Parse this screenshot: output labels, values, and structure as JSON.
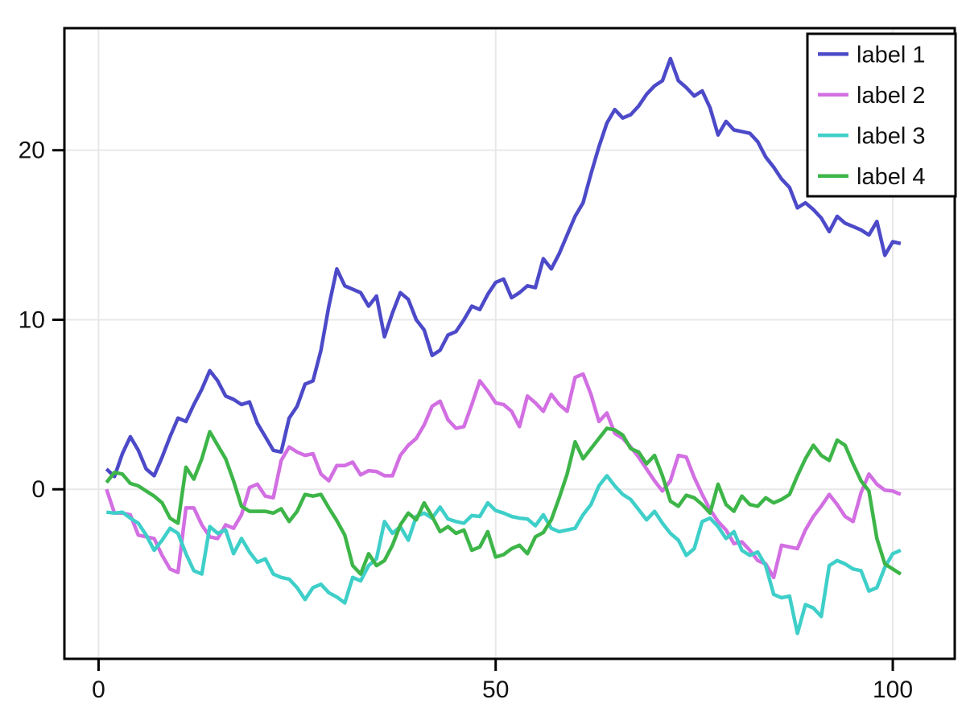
{
  "chart_data": {
    "type": "line",
    "title": "",
    "xlabel": "",
    "ylabel": "",
    "grid": true,
    "legend_position": "top-right",
    "xlim": [
      -4.3,
      107.8
    ],
    "ylim": [
      -10.0,
      27.2
    ],
    "x_ticks": [
      0,
      50,
      100
    ],
    "x_tick_labels": [
      "0",
      "50",
      "100"
    ],
    "y_ticks": [
      0,
      10,
      20
    ],
    "y_tick_labels": [
      "0",
      "10",
      "20"
    ],
    "x_start": 1,
    "x_step": 1,
    "series": [
      {
        "name": "label 1",
        "color": "#4c4ac8",
        "values": [
          1.2,
          0.75,
          2.1,
          3.1,
          2.3,
          1.2,
          0.8,
          1.9,
          3.1,
          4.2,
          4.0,
          5.0,
          5.9,
          7.0,
          6.4,
          5.5,
          5.3,
          5.0,
          5.15,
          3.9,
          3.1,
          2.3,
          2.2,
          4.2,
          4.9,
          6.2,
          6.4,
          8.2,
          10.8,
          13.0,
          12.0,
          11.8,
          11.6,
          10.8,
          11.4,
          9.0,
          10.4,
          11.6,
          11.2,
          10.0,
          9.4,
          7.9,
          8.2,
          9.1,
          9.3,
          10.0,
          10.8,
          10.6,
          11.5,
          12.2,
          12.4,
          11.3,
          11.6,
          12.0,
          11.9,
          13.6,
          13.0,
          13.9,
          15.0,
          16.1,
          16.9,
          18.6,
          20.2,
          21.6,
          22.4,
          21.9,
          22.1,
          22.6,
          23.3,
          23.8,
          24.1,
          25.4,
          24.1,
          23.7,
          23.2,
          23.5,
          22.5,
          20.9,
          21.7,
          21.2,
          21.1,
          21.0,
          20.5,
          19.6,
          19.0,
          18.3,
          17.8,
          16.6,
          16.9,
          16.5,
          16.0,
          15.2,
          16.1,
          15.7,
          15.5,
          15.3,
          15.0,
          15.8,
          13.8,
          14.6,
          14.5
        ]
      },
      {
        "name": "label 2",
        "color": "#d26fe2",
        "values": [
          0.0,
          -1.4,
          -1.4,
          -1.5,
          -2.7,
          -2.8,
          -2.9,
          -3.9,
          -4.7,
          -4.9,
          -1.1,
          -1.1,
          -2.1,
          -2.8,
          -2.9,
          -2.1,
          -2.3,
          -1.5,
          0.1,
          0.3,
          -0.4,
          -0.5,
          1.7,
          2.5,
          2.2,
          2.0,
          2.1,
          0.9,
          0.5,
          1.4,
          1.4,
          1.6,
          0.85,
          1.1,
          1.05,
          0.8,
          0.8,
          2.0,
          2.6,
          3.0,
          3.8,
          4.9,
          5.2,
          4.1,
          3.6,
          3.7,
          5.0,
          6.4,
          5.8,
          5.1,
          5.0,
          4.6,
          3.7,
          5.5,
          5.1,
          4.6,
          5.6,
          5.0,
          4.6,
          6.6,
          6.8,
          5.6,
          4.0,
          4.5,
          3.3,
          3.0,
          2.5,
          1.9,
          1.2,
          0.5,
          -0.1,
          0.5,
          2.0,
          1.9,
          0.7,
          -0.3,
          -1.2,
          -1.9,
          -2.4,
          -3.2,
          -3.1,
          -3.6,
          -4.2,
          -4.4,
          -5.2,
          -3.3,
          -3.4,
          -3.5,
          -2.4,
          -1.6,
          -1.0,
          -0.3,
          -0.9,
          -1.6,
          -1.9,
          -0.2,
          0.9,
          0.3,
          -0.05,
          -0.1,
          -0.3
        ]
      },
      {
        "name": "label 3",
        "color": "#3fcfc9",
        "values": [
          -1.35,
          -1.4,
          -1.35,
          -1.7,
          -2.0,
          -2.7,
          -3.6,
          -3.0,
          -2.3,
          -2.6,
          -3.8,
          -4.8,
          -5.0,
          -2.2,
          -2.6,
          -2.4,
          -3.8,
          -2.9,
          -3.7,
          -4.3,
          -4.1,
          -5.0,
          -5.2,
          -5.3,
          -5.8,
          -6.5,
          -5.8,
          -5.6,
          -6.1,
          -6.35,
          -6.7,
          -5.2,
          -5.4,
          -4.5,
          -4.1,
          -1.9,
          -2.6,
          -2.2,
          -3.0,
          -1.6,
          -1.4,
          -1.7,
          -1.05,
          -1.75,
          -1.9,
          -2.0,
          -1.55,
          -1.6,
          -0.8,
          -1.25,
          -1.4,
          -1.6,
          -1.7,
          -1.75,
          -2.15,
          -1.5,
          -2.3,
          -2.5,
          -2.4,
          -2.3,
          -1.5,
          -0.9,
          0.2,
          0.8,
          0.2,
          -0.3,
          -0.6,
          -1.2,
          -1.8,
          -1.3,
          -2.0,
          -2.6,
          -3.0,
          -3.9,
          -3.5,
          -1.9,
          -1.7,
          -2.2,
          -2.9,
          -2.5,
          -3.6,
          -3.9,
          -3.7,
          -4.5,
          -6.2,
          -6.4,
          -6.3,
          -8.5,
          -6.8,
          -7.0,
          -7.5,
          -4.5,
          -4.2,
          -4.4,
          -4.7,
          -4.8,
          -6.0,
          -5.8,
          -4.6,
          -3.8,
          -3.6
        ]
      },
      {
        "name": "label 4",
        "color": "#3db548",
        "values": [
          0.4,
          1.0,
          0.9,
          0.35,
          0.2,
          -0.1,
          -0.4,
          -0.8,
          -1.7,
          -2.0,
          1.3,
          0.6,
          1.8,
          3.4,
          2.6,
          1.8,
          0.5,
          -1.0,
          -1.3,
          -1.3,
          -1.3,
          -1.4,
          -1.15,
          -1.9,
          -1.3,
          -0.3,
          -0.4,
          -0.3,
          -1.1,
          -1.85,
          -2.7,
          -4.5,
          -5.0,
          -3.8,
          -4.5,
          -4.2,
          -3.3,
          -2.1,
          -1.4,
          -1.8,
          -0.8,
          -1.6,
          -2.5,
          -2.2,
          -2.6,
          -2.4,
          -3.6,
          -3.4,
          -2.5,
          -4.0,
          -3.85,
          -3.5,
          -3.3,
          -3.8,
          -2.8,
          -2.55,
          -1.8,
          -0.5,
          0.9,
          2.8,
          1.8,
          2.4,
          3.0,
          3.6,
          3.5,
          3.2,
          2.4,
          2.2,
          1.5,
          2.0,
          0.8,
          -0.7,
          -1.0,
          -0.35,
          -0.5,
          -0.9,
          -1.4,
          0.3,
          -0.9,
          -1.3,
          -0.4,
          -0.9,
          -1.0,
          -0.5,
          -0.8,
          -0.6,
          -0.3,
          0.8,
          1.8,
          2.6,
          2.0,
          1.7,
          2.9,
          2.6,
          1.5,
          0.5,
          -0.1,
          -2.9,
          -4.4,
          -4.7,
          -5.0
        ]
      }
    ]
  },
  "colors": {
    "frame": "#000000",
    "grid": "#e8e8e8",
    "tick_label": "#111111",
    "background": "#ffffff"
  }
}
